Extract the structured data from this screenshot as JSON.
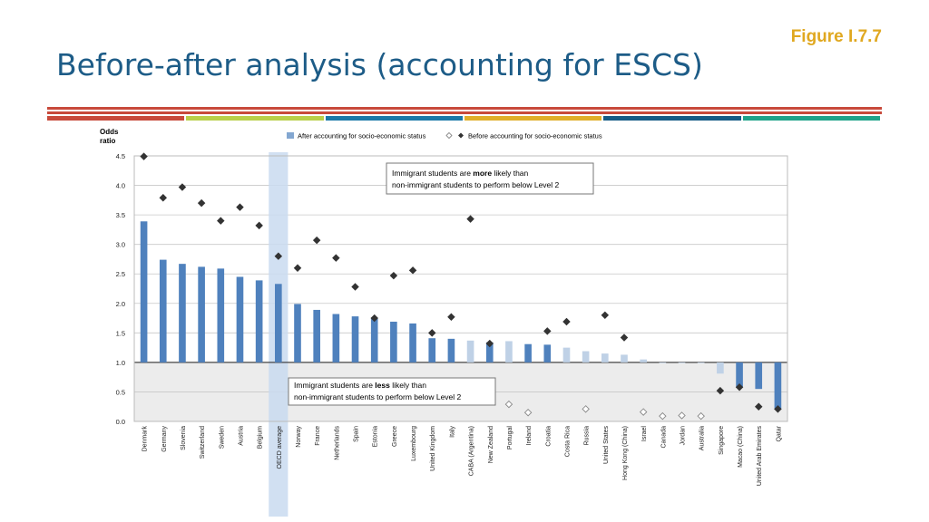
{
  "header": {
    "figure_label": "Figure I.7.7",
    "title": "Before-after analysis (accounting for ESCS)"
  },
  "colors": {
    "title": "#1d5c87",
    "figure_label": "#e0a820",
    "stripes": [
      "#c84a3b",
      "#b9cf4a",
      "#1b78a8",
      "#e0ae2a",
      "#155b86",
      "#1fa38a"
    ],
    "bar_significant": "#4f81bd",
    "bar_nonsignificant": "#bfd1e6",
    "diamond_significant": "#333333",
    "oecd_band": "#c9daf0"
  },
  "chart_data": {
    "type": "bar",
    "ylabel_line1": "Odds",
    "ylabel_line2": "ratio",
    "yticks": [
      "0.0",
      "0.5",
      "1.0",
      "1.5",
      "2.0",
      "2.5",
      "3.0",
      "3.5",
      "4.0",
      "4.5"
    ],
    "ylim": [
      0,
      4.5
    ],
    "baseline": 1.0,
    "grid": true,
    "legend_position": "top",
    "legend": {
      "after": "After accounting for socio-economic status",
      "before": "Before accounting for socio-economic status"
    },
    "annotation_more": {
      "line1_pre": "Immigrant students are ",
      "line1_bold": "more",
      "line1_post": " likely than",
      "line2": "non-immigrant students to perform below Level 2"
    },
    "annotation_less": {
      "line1_pre": "Immigrant students are ",
      "line1_bold": "less",
      "line1_post": " likely than",
      "line2": "non-immigrant students to perform below Level 2"
    },
    "highlight_category": "OECD average",
    "categories": [
      "Denmark",
      "Germany",
      "Slovenia",
      "Switzerland",
      "Sweden",
      "Austria",
      "Belgium",
      "OECD average",
      "Norway",
      "France",
      "Netherlands",
      "Spain",
      "Estonia",
      "Greece",
      "Luxembourg",
      "United Kingdom",
      "Italy",
      "CABA (Argentina)",
      "New Zealand",
      "Portugal",
      "Ireland",
      "Croatia",
      "Costa Rica",
      "Russia",
      "United States",
      "Hong Kong (China)",
      "Israel",
      "Canada",
      "Jordan",
      "Australia",
      "Singapore",
      "Macao (China)",
      "United Arab Emirates",
      "Qatar"
    ],
    "series": [
      {
        "name": "After accounting for socio-economic status",
        "values": [
          3.39,
          2.74,
          2.67,
          2.62,
          2.59,
          2.45,
          2.39,
          2.33,
          1.99,
          1.89,
          1.82,
          1.78,
          1.75,
          1.69,
          1.66,
          1.41,
          1.4,
          1.37,
          1.34,
          1.36,
          1.31,
          1.3,
          1.25,
          1.19,
          1.15,
          1.13,
          1.05,
          0.99,
          0.99,
          1.0,
          0.81,
          0.57,
          0.55,
          0.2
        ],
        "significant": [
          true,
          true,
          true,
          true,
          true,
          true,
          true,
          true,
          true,
          true,
          true,
          true,
          true,
          true,
          true,
          true,
          true,
          false,
          true,
          false,
          true,
          true,
          false,
          false,
          false,
          false,
          false,
          false,
          false,
          false,
          false,
          true,
          true,
          true
        ]
      },
      {
        "name": "Before accounting for socio-economic status",
        "values": [
          4.49,
          3.79,
          3.97,
          3.7,
          3.4,
          3.63,
          3.32,
          2.8,
          2.6,
          3.07,
          2.77,
          2.28,
          1.75,
          2.47,
          2.56,
          1.5,
          1.77,
          3.43,
          1.32,
          0.29,
          0.15,
          1.53,
          1.69,
          0.21,
          1.8,
          1.42,
          0.16,
          0.09,
          0.1,
          0.09,
          0.52,
          0.58,
          0.25,
          0.21
        ],
        "significant": [
          true,
          true,
          true,
          true,
          true,
          true,
          true,
          true,
          true,
          true,
          true,
          true,
          true,
          true,
          true,
          true,
          true,
          true,
          true,
          false,
          false,
          true,
          true,
          false,
          true,
          true,
          false,
          false,
          false,
          false,
          true,
          true,
          true,
          true
        ]
      }
    ]
  }
}
